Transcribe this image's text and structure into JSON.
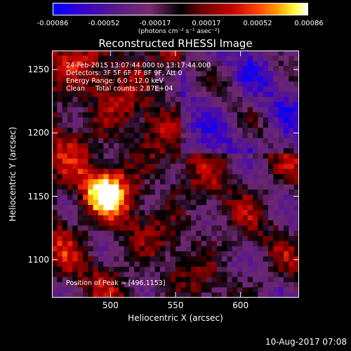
{
  "colorbar": {
    "ticks": [
      "-0.00086",
      "-0.00052",
      "-0.00017",
      "0.00017",
      "0.00052",
      "0.00086"
    ],
    "units": "(photons cm⁻² s⁻¹ asec⁻²)"
  },
  "chart_data": {
    "type": "heatmap",
    "title": "Reconstructed RHESSI Image",
    "xlabel": "Heliocentric X (arcsec)",
    "ylabel": "Heliocentric Y (arcsec)",
    "xlim": [
      455,
      645
    ],
    "ylim": [
      1070,
      1265
    ],
    "xticks": [
      500,
      550,
      600
    ],
    "yticks": [
      1100,
      1150,
      1200,
      1250
    ],
    "colorbar_range": [
      -0.00086,
      0.00086
    ],
    "peak": {
      "x": 496,
      "y": 1153
    },
    "annotations": {
      "time": "24-Feb-2015 13:07:44.000 to 13:17:44.000",
      "detectors": "Detectors: 3F 5F 6F 7F 8F 9F, Att 0",
      "energy": "Energy Range: 6.0 - 12.0 keV",
      "clean": "Clean     Total counts: 2.87E+04",
      "peak_text": "Position of Peak = [496,1153]"
    }
  },
  "footer": {
    "timestamp": "10-Aug-2017 07:08"
  }
}
